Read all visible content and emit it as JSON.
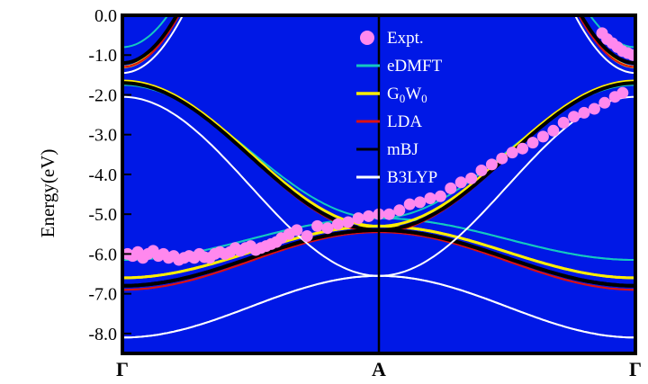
{
  "chart_data": {
    "type": "line",
    "ylabel": "Energy(eV)",
    "ylim": [
      -8.5,
      0.0
    ],
    "yticks": [
      "0.0",
      "-1.0",
      "-2.0",
      "-3.0",
      "-4.0",
      "-5.0",
      "-6.0",
      "-7.0",
      "-8.0"
    ],
    "ytick_values": [
      0.0,
      -1.0,
      -2.0,
      -3.0,
      -4.0,
      -5.0,
      -6.0,
      -7.0,
      -8.0
    ],
    "xlim": [
      0,
      2
    ],
    "xticks": [
      "Γ",
      "A",
      "Γ"
    ],
    "xtick_values": [
      0,
      1,
      2
    ],
    "grid": false,
    "legend_position": "top-center",
    "colors": {
      "background": "#0018e6",
      "frame": "#000000"
    },
    "series": [
      {
        "name": "Expt.",
        "kind": "scatter",
        "color": "#ff88ee",
        "points": [
          [
            0.02,
            -6.0
          ],
          [
            0.04,
            -6.05
          ],
          [
            0.06,
            -5.95
          ],
          [
            0.08,
            -6.1
          ],
          [
            0.1,
            -6.0
          ],
          [
            0.12,
            -5.92
          ],
          [
            0.14,
            -6.05
          ],
          [
            0.16,
            -6.0
          ],
          [
            0.18,
            -6.1
          ],
          [
            0.2,
            -6.05
          ],
          [
            0.22,
            -6.15
          ],
          [
            0.24,
            -6.1
          ],
          [
            0.26,
            -6.05
          ],
          [
            0.28,
            -6.1
          ],
          [
            0.3,
            -6.0
          ],
          [
            0.32,
            -6.08
          ],
          [
            0.34,
            -6.1
          ],
          [
            0.36,
            -6.0
          ],
          [
            0.38,
            -5.95
          ],
          [
            0.4,
            -6.0
          ],
          [
            0.42,
            -5.95
          ],
          [
            0.44,
            -5.85
          ],
          [
            0.46,
            -5.92
          ],
          [
            0.48,
            -5.85
          ],
          [
            0.5,
            -5.8
          ],
          [
            0.52,
            -5.9
          ],
          [
            0.54,
            -5.85
          ],
          [
            0.56,
            -5.8
          ],
          [
            0.58,
            -5.75
          ],
          [
            0.6,
            -5.7
          ],
          [
            0.62,
            -5.6
          ],
          [
            0.65,
            -5.5
          ],
          [
            0.68,
            -5.4
          ],
          [
            0.72,
            -5.55
          ],
          [
            0.76,
            -5.3
          ],
          [
            0.8,
            -5.35
          ],
          [
            0.84,
            -5.25
          ],
          [
            0.88,
            -5.2
          ],
          [
            0.92,
            -5.1
          ],
          [
            0.96,
            -5.05
          ],
          [
            1.0,
            -5.0
          ],
          [
            1.04,
            -5.0
          ],
          [
            1.08,
            -4.9
          ],
          [
            1.12,
            -4.75
          ],
          [
            1.16,
            -4.7
          ],
          [
            1.2,
            -4.6
          ],
          [
            1.24,
            -4.55
          ],
          [
            1.28,
            -4.35
          ],
          [
            1.32,
            -4.2
          ],
          [
            1.36,
            -4.1
          ],
          [
            1.4,
            -3.9
          ],
          [
            1.44,
            -3.75
          ],
          [
            1.48,
            -3.6
          ],
          [
            1.52,
            -3.45
          ],
          [
            1.56,
            -3.35
          ],
          [
            1.6,
            -3.2
          ],
          [
            1.64,
            -3.05
          ],
          [
            1.68,
            -2.9
          ],
          [
            1.72,
            -2.7
          ],
          [
            1.76,
            -2.55
          ],
          [
            1.8,
            -2.45
          ],
          [
            1.84,
            -2.35
          ],
          [
            1.88,
            -2.2
          ],
          [
            1.92,
            -2.05
          ],
          [
            1.95,
            -1.95
          ],
          [
            1.87,
            -0.45
          ],
          [
            1.89,
            -0.6
          ],
          [
            1.91,
            -0.7
          ],
          [
            1.93,
            -0.8
          ],
          [
            1.95,
            -0.9
          ],
          [
            1.97,
            -0.95
          ],
          [
            1.99,
            -1.0
          ]
        ]
      },
      {
        "name": "eDMFT",
        "kind": "line",
        "color": "#14c8c0",
        "bands": [
          {
            "from": -5.1,
            "to": -6.15,
            "shape": "cos"
          },
          {
            "from": -5.1,
            "to": -6.15,
            "shape": "cos",
            "mirror": true
          },
          {
            "from": -0.8,
            "to": 1.2,
            "shape": "parab"
          },
          {
            "from": -1.75,
            "to": -5.1,
            "shape": "cos_up"
          }
        ]
      },
      {
        "name": "G0W0",
        "kind": "line",
        "color": "#ffee00",
        "bands": [
          {
            "from": -5.3,
            "to": -6.6,
            "shape": "cos"
          },
          {
            "from": -5.3,
            "to": -6.6,
            "shape": "cos",
            "mirror": true
          },
          {
            "from": -1.3,
            "to": 0.9,
            "shape": "parab"
          },
          {
            "from": -1.65,
            "to": -5.3,
            "shape": "cos_up"
          }
        ]
      },
      {
        "name": "LDA",
        "kind": "line",
        "color": "#dd1010",
        "bands": [
          {
            "from": -5.45,
            "to": -6.9,
            "shape": "cos"
          },
          {
            "from": -5.45,
            "to": -6.9,
            "shape": "cos",
            "mirror": true
          },
          {
            "from": -1.3,
            "to": 0.8,
            "shape": "parab"
          },
          {
            "from": -1.7,
            "to": -5.45,
            "shape": "cos_up"
          }
        ]
      },
      {
        "name": "mBJ",
        "kind": "line",
        "color": "#000000",
        "bands": [
          {
            "from": -5.4,
            "to": -6.8,
            "shape": "cos"
          },
          {
            "from": -5.4,
            "to": -6.8,
            "shape": "cos",
            "mirror": true
          },
          {
            "from": -1.2,
            "to": 0.9,
            "shape": "parab"
          },
          {
            "from": -1.7,
            "to": -5.4,
            "shape": "cos_up"
          }
        ]
      },
      {
        "name": "B3LYP",
        "kind": "line",
        "color": "#ffffff",
        "bands": [
          {
            "from": -6.55,
            "to": -8.1,
            "shape": "cos"
          },
          {
            "from": -6.55,
            "to": -8.1,
            "shape": "cos",
            "mirror": true
          },
          {
            "from": -1.45,
            "to": 0.6,
            "shape": "parab"
          },
          {
            "from": -2.05,
            "to": -6.55,
            "shape": "cos_up"
          }
        ]
      }
    ]
  }
}
